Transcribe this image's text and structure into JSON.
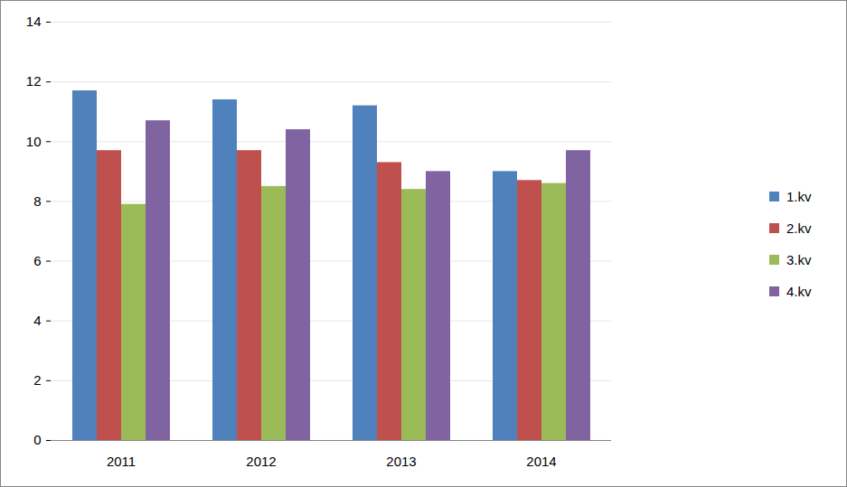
{
  "chart_data": {
    "type": "bar",
    "categories": [
      "2011",
      "2012",
      "2013",
      "2014",
      null
    ],
    "series": [
      {
        "name": "1.kv",
        "color": "#4f81bd",
        "values": [
          11.7,
          11.4,
          11.2,
          9.0,
          null
        ]
      },
      {
        "name": "2.kv",
        "color": "#c0504d",
        "values": [
          9.7,
          9.7,
          9.3,
          8.7,
          null
        ]
      },
      {
        "name": "3.kv",
        "color": "#9bbb59",
        "values": [
          7.9,
          8.5,
          8.4,
          8.6,
          null
        ]
      },
      {
        "name": "4.kv",
        "color": "#8064a2",
        "values": [
          10.7,
          10.4,
          9.0,
          9.7,
          null
        ]
      }
    ],
    "ylim": [
      0,
      14
    ],
    "yticks": [
      0,
      2,
      4,
      6,
      8,
      10,
      12,
      14
    ],
    "grid": true,
    "legend": "right"
  }
}
